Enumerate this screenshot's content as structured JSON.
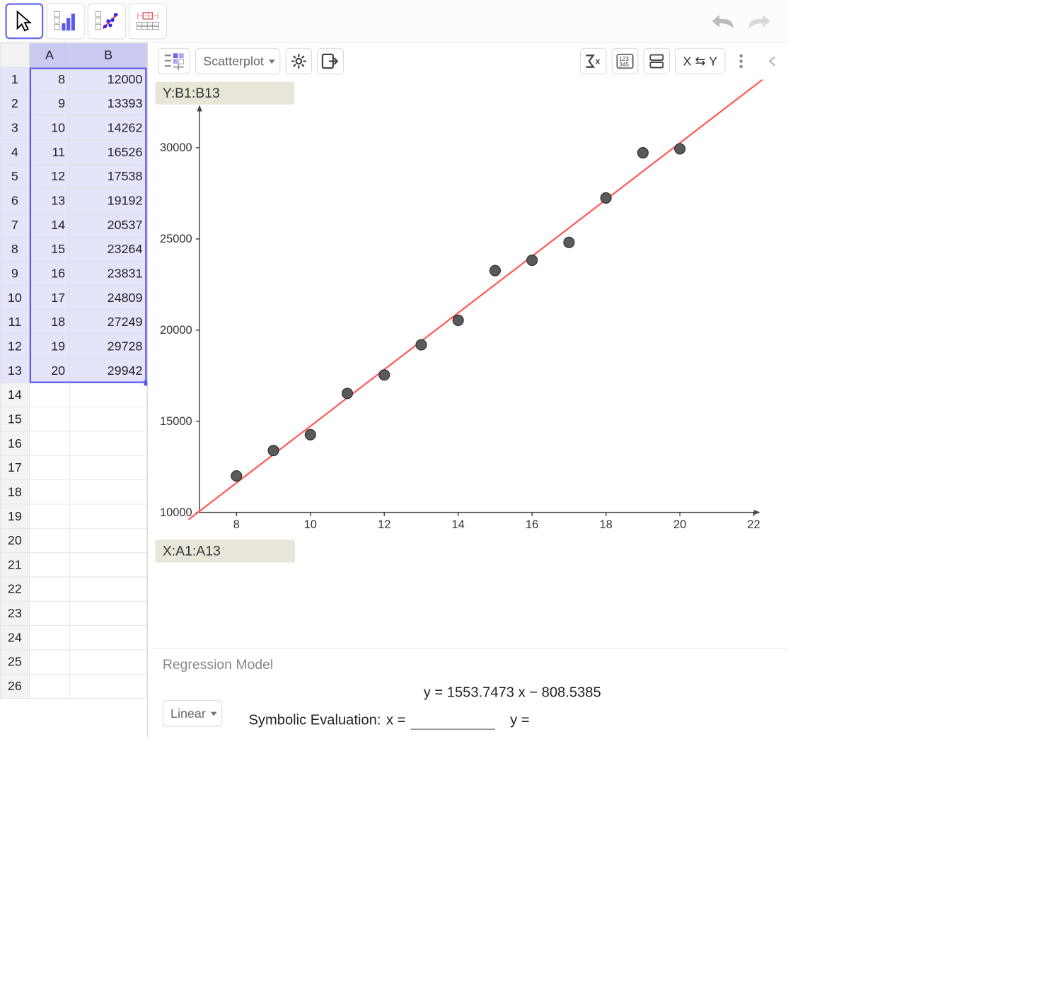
{
  "toolbar": {
    "tools": [
      "pointer",
      "bar-chart",
      "scatter",
      "boxplot"
    ]
  },
  "spreadsheet": {
    "columns": [
      "A",
      "B"
    ],
    "rows": [
      {
        "n": 1,
        "a": 8,
        "b": 12000
      },
      {
        "n": 2,
        "a": 9,
        "b": 13393
      },
      {
        "n": 3,
        "a": 10,
        "b": 14262
      },
      {
        "n": 4,
        "a": 11,
        "b": 16526
      },
      {
        "n": 5,
        "a": 12,
        "b": 17538
      },
      {
        "n": 6,
        "a": 13,
        "b": 19192
      },
      {
        "n": 7,
        "a": 14,
        "b": 20537
      },
      {
        "n": 8,
        "a": 15,
        "b": 23264
      },
      {
        "n": 9,
        "a": 16,
        "b": 23831
      },
      {
        "n": 10,
        "a": 17,
        "b": 24809
      },
      {
        "n": 11,
        "a": 18,
        "b": 27249
      },
      {
        "n": 12,
        "a": 19,
        "b": 29728
      },
      {
        "n": 13,
        "a": 20,
        "b": 29942
      }
    ],
    "empty_rows": [
      14,
      15,
      16,
      17,
      18,
      19,
      20,
      21,
      22,
      23,
      24,
      25,
      26
    ],
    "selection": "A1:B13"
  },
  "chart": {
    "type_label": "Scatterplot",
    "y_range_label": "Y:",
    "y_range": "B1:B13",
    "x_range_label": "X:",
    "x_range": "A1:A13",
    "xlim": [
      7,
      22
    ],
    "ylim": [
      10000,
      32000
    ],
    "xticks": [
      8,
      10,
      12,
      14,
      16,
      18,
      20,
      22
    ],
    "yticks": [
      10000,
      15000,
      20000,
      25000,
      30000
    ],
    "point_color": "#5a5a5a",
    "point_stroke": "#2a2a2a",
    "point_radius": 10,
    "line_color": "#ff5a5a",
    "line_width": 3,
    "axis_color": "#444",
    "tick_fontsize": 22,
    "regression": {
      "slope": 1553.7473,
      "intercept": -808.5385
    }
  },
  "controls": {
    "swap_label": "X ⇆ Y"
  },
  "regression_panel": {
    "title": "Regression Model",
    "model_type": "Linear",
    "formula": "y = 1553.7473 x − 808.5385",
    "sym_eval_label": "Symbolic Evaluation:",
    "x_label": "x =",
    "y_label": "y ="
  }
}
